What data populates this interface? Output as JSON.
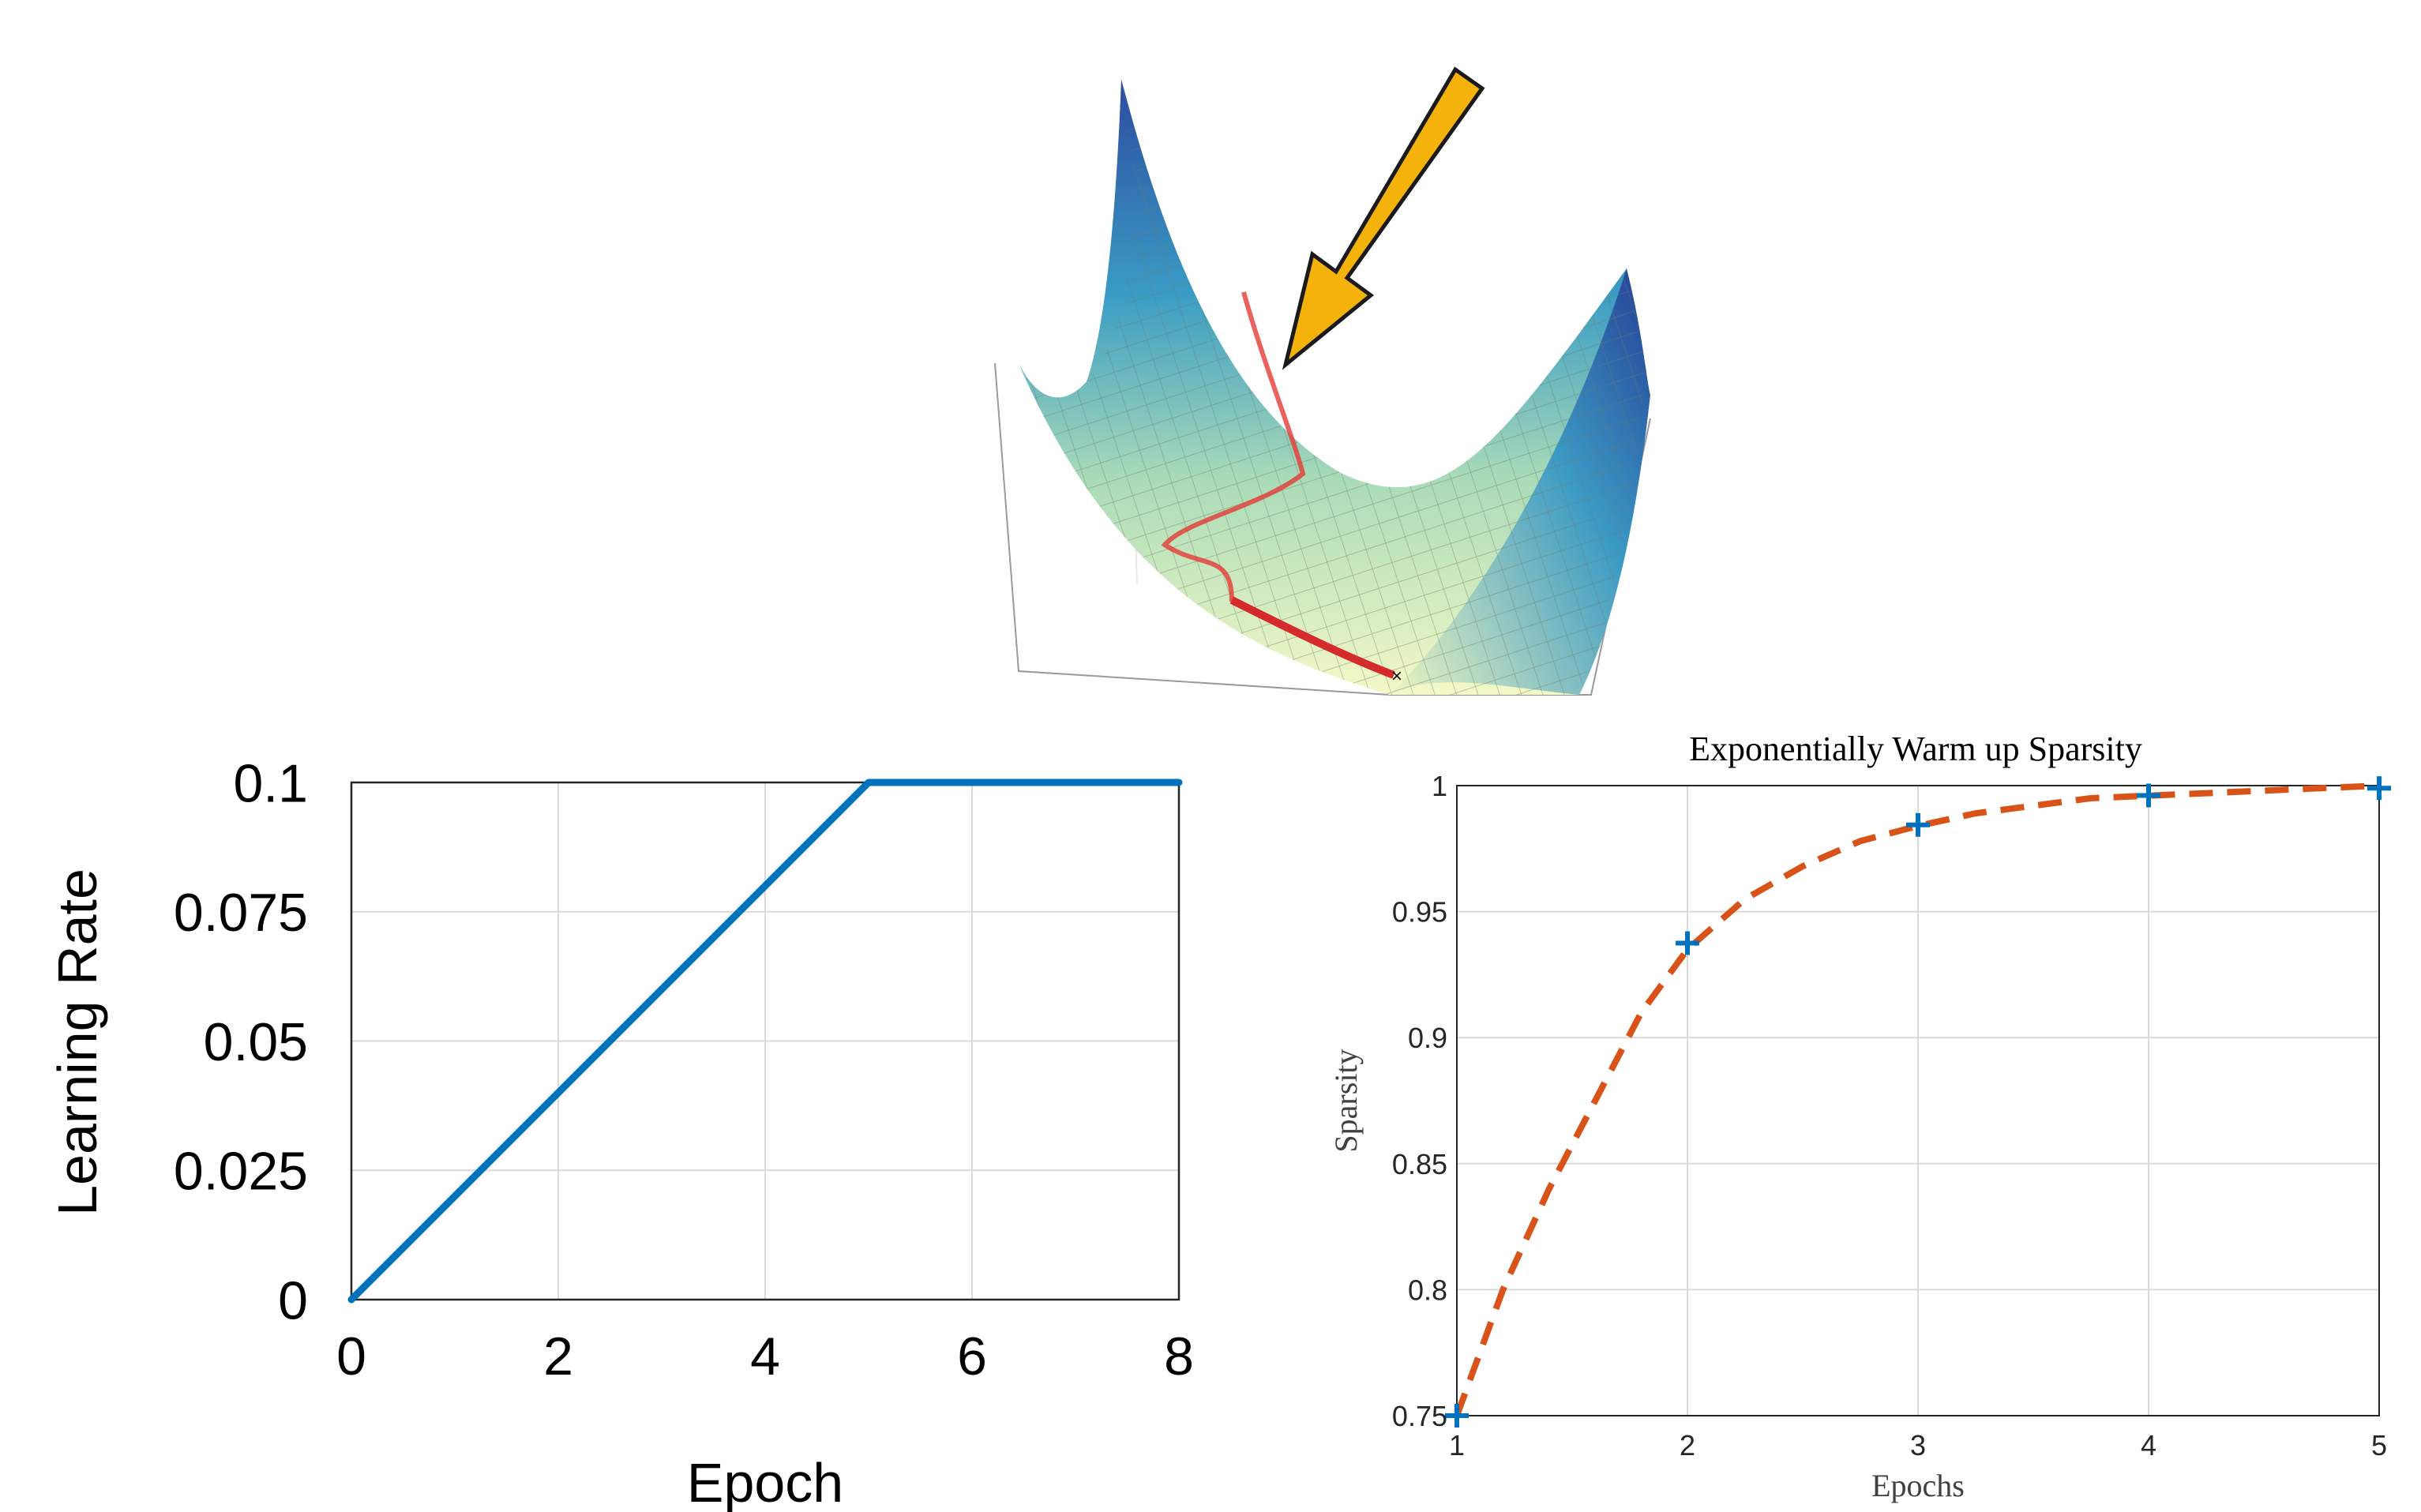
{
  "colors": {
    "line_blue": "#0072bd",
    "curve_orange": "#d95319",
    "marker_blue": "#0072bd",
    "arrow_fill": "#f5b20a",
    "path_red": "#e53935",
    "grid": "#d9d9d9",
    "axis": "#262626"
  },
  "icons": {
    "surface": "loss-surface-3d-illustration",
    "arrow": "downward-arrow-icon"
  },
  "chart_data": [
    {
      "type": "line",
      "title": "",
      "xlabel": "Epoch",
      "ylabel": "Learning Rate",
      "xlim": [
        0,
        8
      ],
      "ylim": [
        0,
        0.1
      ],
      "xticks": [
        0,
        2,
        4,
        6,
        8
      ],
      "xtick_labels": [
        "0",
        "2",
        "4",
        "6",
        "8"
      ],
      "yticks": [
        0,
        0.025,
        0.05,
        0.075,
        0.1
      ],
      "ytick_labels": [
        "0",
        "0.025",
        "0.05",
        "0.075",
        "0.1"
      ],
      "grid": true,
      "series": [
        {
          "x": [
            0,
            5,
            8
          ],
          "y": [
            0,
            0.1,
            0.1
          ]
        }
      ]
    },
    {
      "type": "line",
      "title": "Exponentially Warm up Sparsity",
      "xlabel": "Epochs",
      "ylabel": "Sparsity",
      "xlim": [
        1,
        5
      ],
      "ylim": [
        0.75,
        1
      ],
      "xticks": [
        1,
        2,
        3,
        4,
        5
      ],
      "xtick_labels": [
        "1",
        "2",
        "3",
        "4",
        "5"
      ],
      "yticks": [
        0.75,
        0.8,
        0.85,
        0.9,
        0.95,
        1
      ],
      "ytick_labels": [
        "0.75",
        "0.8",
        "0.85",
        "0.9",
        "0.95",
        "1"
      ],
      "grid": true,
      "series": [
        {
          "style": "dashed",
          "x": [
            1,
            1.2,
            1.4,
            1.6,
            1.8,
            2,
            2.25,
            2.5,
            2.75,
            3,
            3.25,
            3.5,
            3.75,
            4,
            4.25,
            4.5,
            4.75,
            5
          ],
          "y": [
            0.75,
            0.8,
            0.84,
            0.875,
            0.91,
            0.935,
            0.955,
            0.968,
            0.978,
            0.984,
            0.989,
            0.992,
            0.995,
            0.996,
            0.997,
            0.998,
            0.999,
            1.0
          ]
        },
        {
          "style": "markers",
          "x": [
            1,
            2,
            3,
            4,
            5
          ],
          "y": [
            0.75,
            0.9375,
            0.9844,
            0.9961,
            0.999
          ]
        }
      ]
    }
  ]
}
